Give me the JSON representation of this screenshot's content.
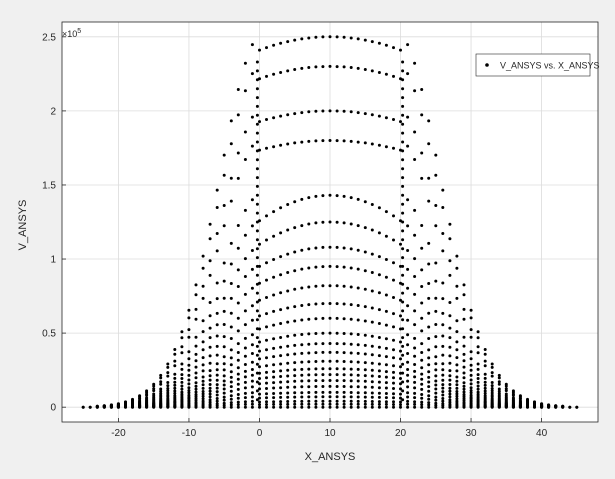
{
  "chart_data": {
    "type": "scatter",
    "xlabel": "X_ANSYS",
    "ylabel": "V_ANSYS",
    "y_exponent_base": "×10",
    "y_exponent_power": "5",
    "xlim": [
      -28,
      48
    ],
    "ylim": [
      -0.1,
      2.6
    ],
    "x_ticks": [
      -20,
      -10,
      0,
      10,
      20,
      30,
      40
    ],
    "y_ticks": [
      0,
      0.5,
      1,
      1.5,
      2,
      2.5
    ],
    "x_tick_labels": [
      "-20",
      "-10",
      "0",
      "10",
      "20",
      "30",
      "40"
    ],
    "y_tick_labels": [
      "0",
      "0.5",
      "1",
      "1.5",
      "2",
      "2.5"
    ],
    "grid": true,
    "legend_position": "top-right",
    "series": [
      {
        "name": "V_ANSYS vs. X_ANSYS",
        "marker": "dot",
        "color": "#000000",
        "profile": {
          "x_min": -25,
          "x_max": 45,
          "plateau_x_start": 0,
          "plateau_x_end": 20,
          "plateau_center_x": 10,
          "peak_value": 2.5,
          "level_peaks": [
            2.5,
            2.3,
            2.0,
            1.8,
            1.43,
            1.25,
            1.08,
            0.95,
            0.82,
            0.7,
            0.6,
            0.5,
            0.43,
            0.37,
            0.31,
            0.26,
            0.22,
            0.18,
            0.14,
            0.1,
            0.07,
            0.04,
            0.02
          ]
        }
      }
    ]
  }
}
